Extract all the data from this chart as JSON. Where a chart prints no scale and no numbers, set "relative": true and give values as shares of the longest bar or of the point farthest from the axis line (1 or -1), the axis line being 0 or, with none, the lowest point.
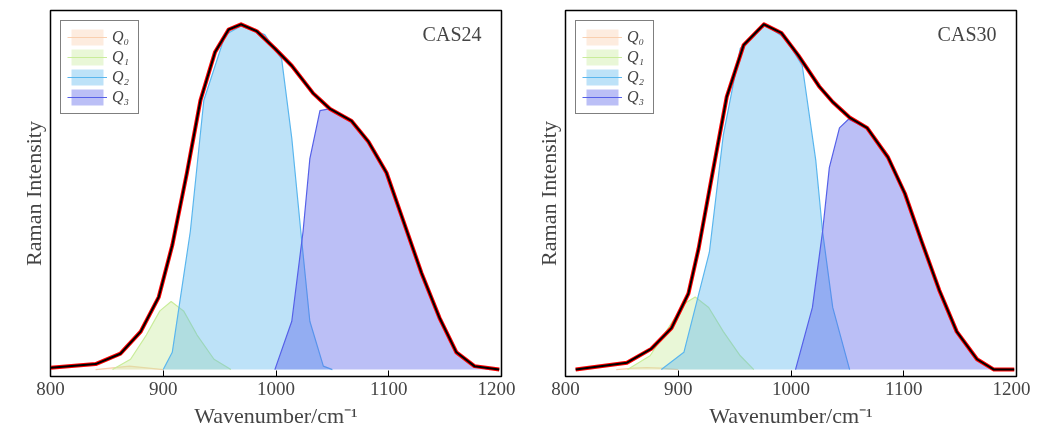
{
  "chart_data": [
    {
      "type": "area",
      "relative": true,
      "xlabel": "Wavenumber/cm⁻¹",
      "ylabel": "Raman Intensity",
      "xlim": [
        800,
        1200
      ],
      "xticks": [
        800,
        900,
        1000,
        1100,
        1200
      ],
      "legend": "top left",
      "annotations": [
        "CAS24"
      ],
      "series": [
        {
          "name": "Q₀",
          "color": "#f9cfae",
          "x": [
            840,
            855,
            870,
            885,
            900
          ],
          "values": [
            0,
            0.005,
            0.01,
            0.005,
            0
          ]
        },
        {
          "name": "Q₁",
          "color": "#c9ec9a",
          "x": [
            855,
            871,
            885,
            897,
            907,
            918,
            930,
            945,
            960
          ],
          "values": [
            0,
            0.03,
            0.1,
            0.17,
            0.197,
            0.17,
            0.1,
            0.03,
            0
          ]
        },
        {
          "name": "Q₂",
          "color": "#5ab6ee",
          "x": [
            900,
            908,
            924,
            936,
            955,
            969,
            990,
            1005,
            1014,
            1022,
            1030,
            1042,
            1050
          ],
          "values": [
            0,
            0.05,
            0.4,
            0.78,
            0.97,
            0.995,
            0.97,
            0.9,
            0.67,
            0.4,
            0.14,
            0.01,
            0
          ]
        },
        {
          "name": "Q₃",
          "color": "#5560e8",
          "x": [
            999,
            1014,
            1024,
            1030,
            1039,
            1047,
            1067,
            1082,
            1098,
            1113,
            1129,
            1145,
            1160,
            1176,
            1190
          ],
          "values": [
            0,
            0.14,
            0.4,
            0.61,
            0.75,
            0.755,
            0.72,
            0.66,
            0.57,
            0.43,
            0.28,
            0.15,
            0.05,
            0.01,
            0
          ]
        },
        {
          "type": "line",
          "color": "#ff0000",
          "x": [
            800,
            840,
            862,
            880,
            896,
            908,
            921,
            933,
            946,
            958,
            969,
            983,
            999,
            1014,
            1033,
            1048,
            1067,
            1082,
            1098,
            1113,
            1129,
            1145,
            1160,
            1176,
            1198
          ],
          "values": [
            0.005,
            0.016,
            0.046,
            0.11,
            0.21,
            0.36,
            0.57,
            0.78,
            0.92,
            0.985,
            1.0,
            0.98,
            0.93,
            0.88,
            0.8,
            0.755,
            0.72,
            0.66,
            0.57,
            0.43,
            0.28,
            0.15,
            0.05,
            0.01,
            0
          ]
        },
        {
          "type": "line",
          "color": "#000000",
          "x": [
            800,
            840,
            862,
            880,
            896,
            908,
            921,
            933,
            946,
            958,
            969,
            983,
            999,
            1014,
            1033,
            1048,
            1067,
            1082,
            1098,
            1113,
            1129,
            1145,
            1160,
            1176,
            1198
          ],
          "values": [
            0.005,
            0.016,
            0.046,
            0.11,
            0.21,
            0.36,
            0.57,
            0.78,
            0.92,
            0.985,
            1.0,
            0.98,
            0.93,
            0.88,
            0.8,
            0.755,
            0.72,
            0.66,
            0.57,
            0.43,
            0.28,
            0.15,
            0.05,
            0.01,
            0
          ]
        }
      ]
    },
    {
      "type": "area",
      "relative": true,
      "xlabel": "Wavenumber/cm⁻¹",
      "ylabel": "Raman Intensity",
      "xlim": [
        800,
        1200
      ],
      "xticks": [
        800,
        900,
        1000,
        1100,
        1200
      ],
      "legend": "top left",
      "annotations": [
        "CAS30"
      ],
      "series": [
        {
          "name": "Q₀",
          "color": "#f9cfae",
          "x": [
            845,
            860,
            872,
            885,
            900
          ],
          "values": [
            0,
            0.004,
            0.006,
            0.004,
            0
          ]
        },
        {
          "name": "Q₁",
          "color": "#c9ec9a",
          "x": [
            855,
            875,
            893,
            905,
            915,
            927,
            940,
            955,
            967
          ],
          "values": [
            0,
            0.04,
            0.13,
            0.19,
            0.21,
            0.18,
            0.11,
            0.04,
            0
          ]
        },
        {
          "name": "Q₂",
          "color": "#5ab6ee",
          "x": [
            885,
            905,
            927.6,
            940,
            955,
            976,
            995,
            1010,
            1022,
            1028,
            1037,
            1052
          ],
          "values": [
            0,
            0.05,
            0.34,
            0.68,
            0.93,
            1.0,
            0.96,
            0.88,
            0.605,
            0.4,
            0.18,
            0
          ]
        },
        {
          "name": "Q₃",
          "color": "#5560e8",
          "x": [
            1004,
            1019,
            1028,
            1034,
            1043,
            1051,
            1067.5,
            1086,
            1101,
            1116,
            1131.5,
            1147,
            1165,
            1180
          ],
          "values": [
            0,
            0.18,
            0.4,
            0.585,
            0.7,
            0.725,
            0.7,
            0.615,
            0.51,
            0.37,
            0.23,
            0.11,
            0.03,
            0
          ]
        },
        {
          "type": "line",
          "color": "#ff0000",
          "x": [
            809,
            854.5,
            876,
            894,
            909,
            918,
            931,
            943,
            958,
            976,
            991.5,
            1006.5,
            1025,
            1037,
            1052,
            1067.5,
            1086,
            1101,
            1116,
            1131.5,
            1147,
            1165,
            1180,
            1198
          ],
          "values": [
            0,
            0.02,
            0.06,
            0.12,
            0.22,
            0.35,
            0.58,
            0.79,
            0.94,
            1.0,
            0.975,
            0.91,
            0.82,
            0.775,
            0.73,
            0.7,
            0.615,
            0.51,
            0.37,
            0.23,
            0.11,
            0.03,
            0,
            0
          ]
        },
        {
          "type": "line",
          "color": "#000000",
          "x": [
            809,
            854.5,
            876,
            894,
            909,
            918,
            931,
            943,
            958,
            976,
            991.5,
            1006.5,
            1025,
            1037,
            1052,
            1067.5,
            1086,
            1101,
            1116,
            1131.5,
            1147,
            1165,
            1180,
            1198
          ],
          "values": [
            0,
            0.02,
            0.06,
            0.12,
            0.22,
            0.35,
            0.58,
            0.79,
            0.94,
            1.0,
            0.975,
            0.91,
            0.82,
            0.775,
            0.73,
            0.7,
            0.615,
            0.51,
            0.37,
            0.23,
            0.11,
            0.03,
            0,
            0
          ]
        }
      ]
    }
  ]
}
